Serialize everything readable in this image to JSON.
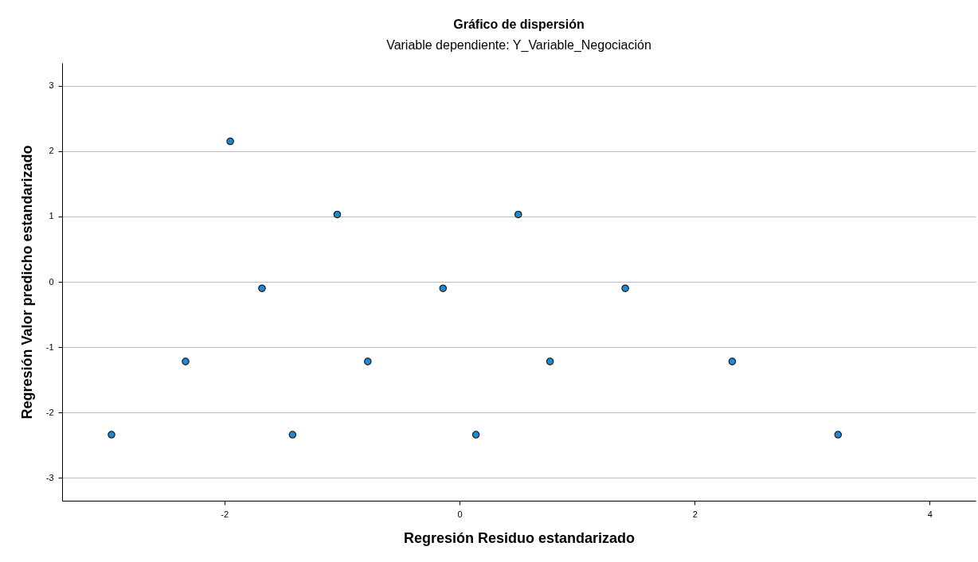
{
  "chart_data": {
    "type": "scatter",
    "title": "Gráfico de dispersión",
    "subtitle": "Variable dependiente: Y_Variable_Negociación",
    "xlabel": "Regresión Residuo estandarizado",
    "ylabel": "Regresión Valor predicho estandarizado",
    "x": [
      -2.96,
      -2.33,
      -1.95,
      -1.68,
      -1.42,
      -1.04,
      -0.78,
      -0.14,
      0.14,
      0.5,
      0.77,
      1.41,
      2.32,
      3.22
    ],
    "series": [
      {
        "color": "#1f8ad4",
        "values": [
          -2.34,
          -1.22,
          2.15,
          -0.1,
          -2.34,
          1.03,
          -1.22,
          -0.1,
          -2.34,
          1.03,
          -1.22,
          -0.1,
          -1.22,
          -2.34
        ]
      }
    ],
    "xlim": [
      -3.38,
      4.39
    ],
    "xticks": [
      -2,
      0,
      2,
      4
    ],
    "ylim": [
      -3.35,
      3.35
    ],
    "yticks": [
      -3,
      -2,
      -1,
      0,
      1,
      2,
      3
    ],
    "grid": "y",
    "marker": "circle",
    "legend": false
  }
}
